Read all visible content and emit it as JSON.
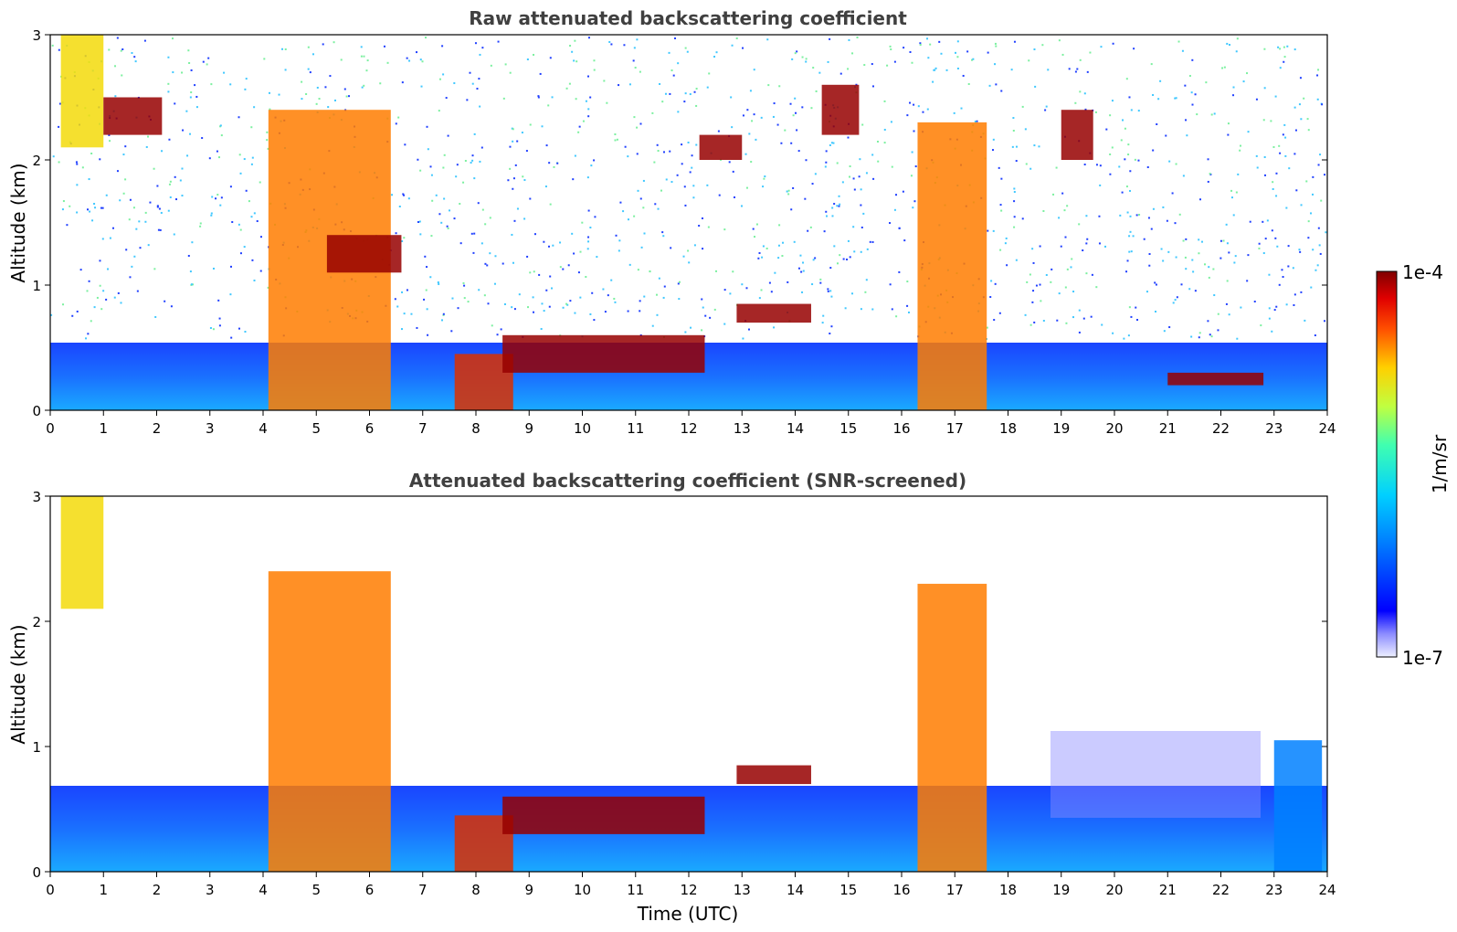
{
  "chart_data": [
    {
      "type": "heatmap",
      "title": "Raw attenuated backscattering coefficient",
      "xlabel": "",
      "ylabel": "Altitude (km)",
      "xlim": [
        0,
        24
      ],
      "ylim": [
        0,
        3
      ],
      "xticks": [
        "0",
        "1",
        "2",
        "3",
        "4",
        "5",
        "6",
        "7",
        "8",
        "9",
        "10",
        "11",
        "12",
        "13",
        "14",
        "15",
        "16",
        "17",
        "18",
        "19",
        "20",
        "21",
        "22",
        "23",
        "24"
      ],
      "yticks": [
        "0",
        "1",
        "2",
        "3"
      ],
      "cloud_layers": [
        {
          "x": [
            0.2,
            1.0
          ],
          "y": [
            2.1,
            3.0
          ],
          "level": 0.7
        },
        {
          "x": [
            1.0,
            2.1
          ],
          "y": [
            2.2,
            2.5
          ],
          "level": 1.0
        },
        {
          "x": [
            4.1,
            6.4
          ],
          "y": [
            0.0,
            2.4
          ],
          "level": 0.8
        },
        {
          "x": [
            5.2,
            6.6
          ],
          "y": [
            1.1,
            1.4
          ],
          "level": 1.0
        },
        {
          "x": [
            7.6,
            8.7
          ],
          "y": [
            0.0,
            0.45
          ],
          "level": 0.9
        },
        {
          "x": [
            8.5,
            12.3
          ],
          "y": [
            0.3,
            0.6
          ],
          "level": 1.0
        },
        {
          "x": [
            12.9,
            14.3
          ],
          "y": [
            0.7,
            0.85
          ],
          "level": 1.0
        },
        {
          "x": [
            12.2,
            13.0
          ],
          "y": [
            2.0,
            2.2
          ],
          "level": 1.0
        },
        {
          "x": [
            14.5,
            15.2
          ],
          "y": [
            2.2,
            2.6
          ],
          "level": 1.0
        },
        {
          "x": [
            16.3,
            17.6
          ],
          "y": [
            0.0,
            2.3
          ],
          "level": 0.8
        },
        {
          "x": [
            19.0,
            19.6
          ],
          "y": [
            2.0,
            2.4
          ],
          "level": 1.0
        },
        {
          "x": [
            21.0,
            22.8
          ],
          "y": [
            0.2,
            0.3
          ],
          "level": 1.0
        }
      ]
    },
    {
      "type": "heatmap",
      "title": "Attenuated backscattering coefficient (SNR-screened)",
      "xlabel": "Time (UTC)",
      "ylabel": "Altitude (km)",
      "xlim": [
        0,
        24
      ],
      "ylim": [
        0,
        3
      ],
      "xticks": [
        "0",
        "1",
        "2",
        "3",
        "4",
        "5",
        "6",
        "7",
        "8",
        "9",
        "10",
        "11",
        "12",
        "13",
        "14",
        "15",
        "16",
        "17",
        "18",
        "19",
        "20",
        "21",
        "22",
        "23",
        "24"
      ],
      "yticks": [
        "0",
        "1",
        "2",
        "3"
      ],
      "cloud_layers": [
        {
          "x": [
            0.2,
            1.0
          ],
          "y": [
            2.1,
            3.0
          ],
          "level": 0.7
        },
        {
          "x": [
            4.1,
            6.4
          ],
          "y": [
            0.0,
            2.4
          ],
          "level": 0.8
        },
        {
          "x": [
            7.6,
            8.7
          ],
          "y": [
            0.0,
            0.45
          ],
          "level": 0.9
        },
        {
          "x": [
            8.5,
            12.3
          ],
          "y": [
            0.3,
            0.6
          ],
          "level": 1.0
        },
        {
          "x": [
            12.9,
            14.3
          ],
          "y": [
            0.7,
            0.85
          ],
          "level": 1.0
        },
        {
          "x": [
            16.3,
            17.6
          ],
          "y": [
            0.0,
            2.3
          ],
          "level": 0.8
        },
        {
          "x": [
            23.0,
            23.9
          ],
          "y": [
            0.0,
            1.05
          ],
          "level": 0.2
        }
      ]
    }
  ],
  "colorbar": {
    "label": "1/m/sr",
    "max_label": "1e-4",
    "min_label": "1e-7",
    "min": 1e-07,
    "max": 0.0001,
    "scale": "log",
    "colormap": "jet"
  }
}
